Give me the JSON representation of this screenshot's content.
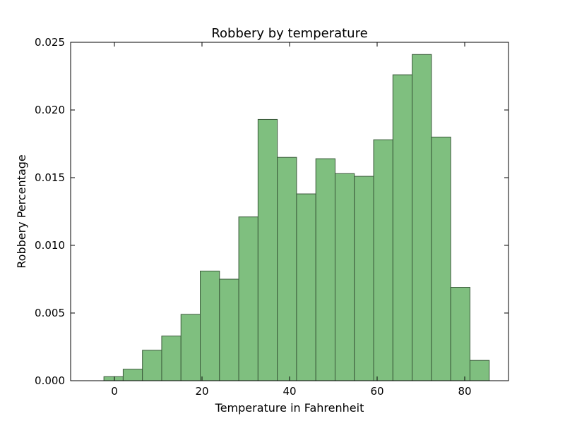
{
  "chart_data": {
    "type": "bar",
    "title": "Robbery by temperature",
    "xlabel": "Temperature in Fahrenheit",
    "ylabel": "Robbery Percentage",
    "xlim": [
      -10,
      90
    ],
    "ylim": [
      0,
      0.025
    ],
    "xticks": [
      0,
      20,
      40,
      60,
      80
    ],
    "yticks": [
      "0.000",
      "0.005",
      "0.010",
      "0.015",
      "0.020",
      "0.025"
    ],
    "bins": [
      {
        "x0": -2.4,
        "x1": 2.0,
        "value": 0.0003
      },
      {
        "x0": 2.0,
        "x1": 6.4,
        "value": 0.00085
      },
      {
        "x0": 6.4,
        "x1": 10.8,
        "value": 0.00225
      },
      {
        "x0": 10.8,
        "x1": 15.2,
        "value": 0.0033
      },
      {
        "x0": 15.2,
        "x1": 19.6,
        "value": 0.0049
      },
      {
        "x0": 19.6,
        "x1": 24.0,
        "value": 0.0081
      },
      {
        "x0": 24.0,
        "x1": 28.4,
        "value": 0.0075
      },
      {
        "x0": 28.4,
        "x1": 32.8,
        "value": 0.0121
      },
      {
        "x0": 32.8,
        "x1": 37.2,
        "value": 0.0193
      },
      {
        "x0": 37.2,
        "x1": 41.6,
        "value": 0.0165
      },
      {
        "x0": 41.6,
        "x1": 46.0,
        "value": 0.0138
      },
      {
        "x0": 46.0,
        "x1": 50.4,
        "value": 0.0164
      },
      {
        "x0": 50.4,
        "x1": 54.8,
        "value": 0.0153
      },
      {
        "x0": 54.8,
        "x1": 59.2,
        "value": 0.0151
      },
      {
        "x0": 59.2,
        "x1": 63.6,
        "value": 0.0178
      },
      {
        "x0": 63.6,
        "x1": 68.0,
        "value": 0.0226
      },
      {
        "x0": 68.0,
        "x1": 72.4,
        "value": 0.0241
      },
      {
        "x0": 72.4,
        "x1": 76.8,
        "value": 0.018
      },
      {
        "x0": 76.8,
        "x1": 81.2,
        "value": 0.0069
      },
      {
        "x0": 81.2,
        "x1": 85.6,
        "value": 0.0015
      }
    ],
    "bar_color": "#7fbf7f",
    "edge_color": "#3a5a3a",
    "grid": false,
    "legend": "none"
  }
}
